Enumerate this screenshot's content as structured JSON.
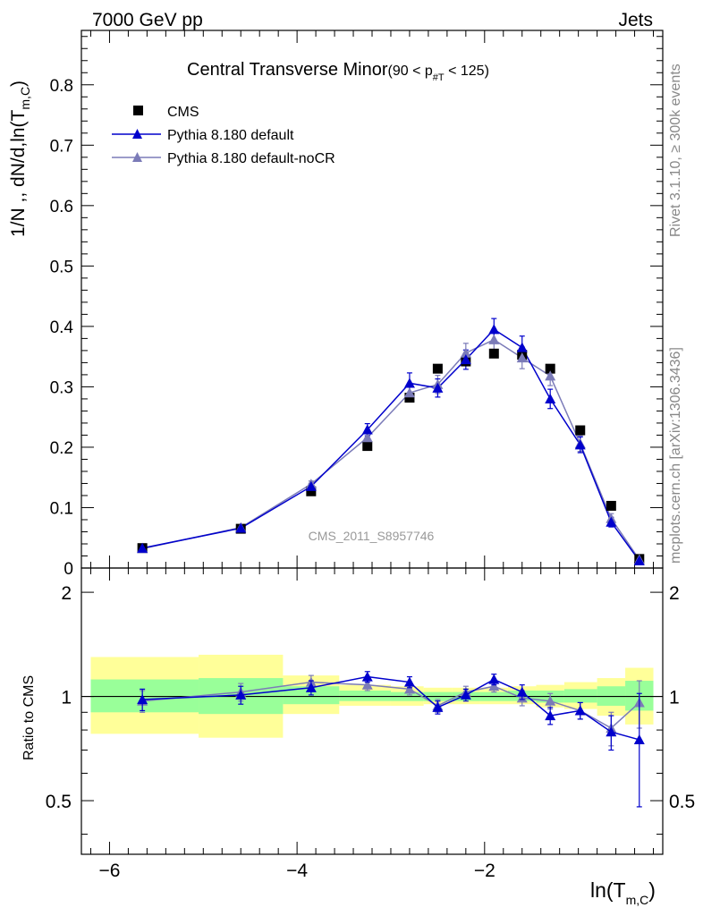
{
  "header": {
    "left": "7000 GeV pp",
    "right": "Jets"
  },
  "side": {
    "rivet": "Rivet 3.1.10, ≥ 300k events",
    "mcplots": "mcplots.cern.ch [arXiv:1306.3436]"
  },
  "plot_title": {
    "main": "Central Transverse Minor",
    "cut": "(90 < p",
    "sub": "#T",
    "cut_end": " < 125)"
  },
  "watermark": "CMS_2011_S8957746",
  "y_label": {
    "main": "1/N ,, dN/d,ln(T",
    "sub": "m,C",
    "close": ")"
  },
  "ratio_label": "Ratio to CMS",
  "x_label": {
    "main": "ln(T",
    "sub": "m,C",
    "close": ")"
  },
  "colors": {
    "cms": "#000000",
    "default": "#0000cc",
    "nocr": "#7b7bb8",
    "band_inner": "#99ff99",
    "band_outer": "#ffff99"
  },
  "chart_data": [
    {
      "type": "scatter",
      "panel": "main",
      "xlim": [
        -6.3,
        -0.1
      ],
      "ylim": [
        0,
        0.89
      ],
      "y_ticks": [
        "0",
        "0.1",
        "0.2",
        "0.3",
        "0.4",
        "0.5",
        "0.6",
        "0.7",
        "0.8"
      ],
      "legend": "top-left",
      "series": [
        {
          "name": "CMS",
          "marker": "square",
          "x": [
            -5.65,
            -4.6,
            -3.85,
            -3.25,
            -2.8,
            -2.5,
            -2.2,
            -1.9,
            -1.6,
            -1.3,
            -0.98,
            -0.65,
            -0.35
          ],
          "y": [
            0.033,
            0.065,
            0.127,
            0.202,
            0.282,
            0.33,
            0.342,
            0.355,
            0.353,
            0.33,
            0.228,
            0.103,
            0.015
          ]
        },
        {
          "name": "Pythia 8.180 default",
          "marker": "triangle",
          "x": [
            -5.65,
            -4.6,
            -3.85,
            -3.25,
            -2.8,
            -2.5,
            -2.2,
            -1.9,
            -1.6,
            -1.3,
            -0.98,
            -0.65,
            -0.35
          ],
          "y": [
            0.033,
            0.066,
            0.135,
            0.229,
            0.306,
            0.298,
            0.345,
            0.395,
            0.365,
            0.28,
            0.204,
            0.076,
            0.012
          ],
          "err": [
            0.002,
            0.003,
            0.005,
            0.01,
            0.017,
            0.015,
            0.016,
            0.018,
            0.019,
            0.016,
            0.013,
            0.008,
            0.004
          ]
        },
        {
          "name": "Pythia 8.180 default-noCR",
          "marker": "triangle",
          "x": [
            -5.65,
            -4.6,
            -3.85,
            -3.25,
            -2.8,
            -2.5,
            -2.2,
            -1.9,
            -1.6,
            -1.3,
            -0.98,
            -0.65,
            -0.35
          ],
          "y": [
            0.032,
            0.067,
            0.139,
            0.216,
            0.29,
            0.304,
            0.356,
            0.378,
            0.348,
            0.318,
            0.206,
            0.082,
            0.014
          ],
          "err": [
            0.002,
            0.003,
            0.005,
            0.01,
            0.015,
            0.015,
            0.016,
            0.017,
            0.018,
            0.016,
            0.013,
            0.008,
            0.004
          ]
        }
      ]
    },
    {
      "type": "scatter",
      "panel": "ratio",
      "ylabel": "Ratio to CMS",
      "xlim": [
        -6.3,
        -0.1
      ],
      "ylim": [
        0.35,
        2.35
      ],
      "x_ticks": [
        "−6",
        "−4",
        "−2"
      ],
      "y_ticks": [
        "0.5",
        "1",
        "2"
      ],
      "bands": [
        {
          "x0": -6.2,
          "x1": -5.05,
          "inner": [
            0.9,
            1.12
          ],
          "outer": [
            0.78,
            1.3
          ]
        },
        {
          "x0": -5.05,
          "x1": -4.15,
          "inner": [
            0.89,
            1.13
          ],
          "outer": [
            0.76,
            1.32
          ]
        },
        {
          "x0": -4.15,
          "x1": -3.55,
          "inner": [
            0.95,
            1.07
          ],
          "outer": [
            0.89,
            1.15
          ]
        },
        {
          "x0": -3.55,
          "x1": -3.0,
          "inner": [
            0.97,
            1.04
          ],
          "outer": [
            0.94,
            1.08
          ]
        },
        {
          "x0": -3.0,
          "x1": -2.65,
          "inner": [
            0.97,
            1.03
          ],
          "outer": [
            0.94,
            1.07
          ]
        },
        {
          "x0": -2.65,
          "x1": -2.35,
          "inner": [
            0.97,
            1.03
          ],
          "outer": [
            0.95,
            1.06
          ]
        },
        {
          "x0": -2.35,
          "x1": -2.05,
          "inner": [
            0.97,
            1.03
          ],
          "outer": [
            0.95,
            1.06
          ]
        },
        {
          "x0": -2.05,
          "x1": -1.75,
          "inner": [
            0.97,
            1.03
          ],
          "outer": [
            0.95,
            1.06
          ]
        },
        {
          "x0": -1.75,
          "x1": -1.45,
          "inner": [
            0.97,
            1.04
          ],
          "outer": [
            0.95,
            1.07
          ]
        },
        {
          "x0": -1.45,
          "x1": -1.15,
          "inner": [
            0.96,
            1.04
          ],
          "outer": [
            0.93,
            1.08
          ]
        },
        {
          "x0": -1.15,
          "x1": -0.8,
          "inner": [
            0.96,
            1.05
          ],
          "outer": [
            0.92,
            1.1
          ]
        },
        {
          "x0": -0.8,
          "x1": -0.5,
          "inner": [
            0.94,
            1.07
          ],
          "outer": [
            0.88,
            1.13
          ]
        },
        {
          "x0": -0.5,
          "x1": -0.2,
          "inner": [
            0.91,
            1.11
          ],
          "outer": [
            0.83,
            1.21
          ]
        }
      ],
      "series": [
        {
          "name": "Pythia 8.180 default",
          "x": [
            -5.65,
            -4.6,
            -3.85,
            -3.25,
            -2.8,
            -2.5,
            -2.2,
            -1.9,
            -1.6,
            -1.3,
            -0.98,
            -0.65,
            -0.35
          ],
          "y": [
            0.98,
            1.01,
            1.06,
            1.14,
            1.1,
            0.93,
            1.01,
            1.12,
            1.03,
            0.88,
            0.91,
            0.79,
            0.75
          ],
          "err": [
            0.07,
            0.06,
            0.05,
            0.04,
            0.04,
            0.04,
            0.04,
            0.04,
            0.05,
            0.05,
            0.05,
            0.09,
            0.27
          ]
        },
        {
          "name": "Pythia 8.180 default-noCR",
          "x": [
            -5.65,
            -4.6,
            -3.85,
            -3.25,
            -2.8,
            -2.5,
            -2.2,
            -1.9,
            -1.6,
            -1.3,
            -0.98,
            -0.65,
            -0.35
          ],
          "y": [
            0.97,
            1.03,
            1.1,
            1.08,
            1.05,
            0.94,
            1.03,
            1.07,
            0.99,
            0.97,
            0.91,
            0.81,
            0.96
          ],
          "err": [
            0.07,
            0.06,
            0.05,
            0.04,
            0.04,
            0.04,
            0.04,
            0.04,
            0.05,
            0.05,
            0.05,
            0.09,
            0.15
          ]
        }
      ]
    }
  ]
}
